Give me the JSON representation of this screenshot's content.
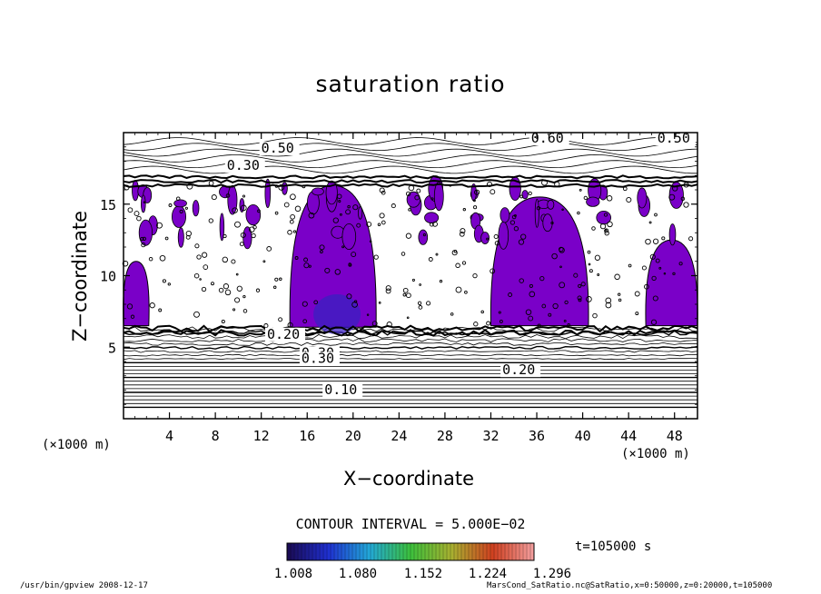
{
  "chart_data": {
    "type": "heatmap",
    "title": "saturation ratio",
    "xlabel": "X−coordinate",
    "ylabel": "Z−coordinate",
    "x_unit_left": "(×1000 m)",
    "x_unit_right": "(×1000 m)",
    "xlim": [
      0,
      50
    ],
    "ylim": [
      0,
      20
    ],
    "x_ticks": [
      4,
      8,
      12,
      16,
      20,
      24,
      28,
      32,
      36,
      40,
      44,
      48
    ],
    "y_ticks": [
      5,
      10,
      15
    ],
    "contour_labels": [
      "0.50",
      "0.60",
      "0.50",
      "0.30",
      "0.20",
      "0.30",
      "0.30",
      "0.20",
      "0.10"
    ],
    "contour_interval_text": "CONTOUR INTERVAL = 5.000E−02",
    "time_text": "t=105000 s",
    "colorbar": {
      "ticks": [
        "1.008",
        "1.080",
        "1.152",
        "1.224",
        "1.296"
      ],
      "colors": [
        "#1a0a50",
        "#1f2fd0",
        "#22a8d8",
        "#3cc03c",
        "#a8b030",
        "#d04020",
        "#f4a0a0"
      ]
    },
    "colors": {
      "supersaturated_fill": "#7a00c8",
      "core_fill": "#3a20c0"
    }
  },
  "footer": {
    "left": "/usr/bin/gpview   2008-12-17",
    "right": "MarsCond_SatRatio.nc@SatRatio,x=0:50000,z=0:20000,t=105000"
  }
}
